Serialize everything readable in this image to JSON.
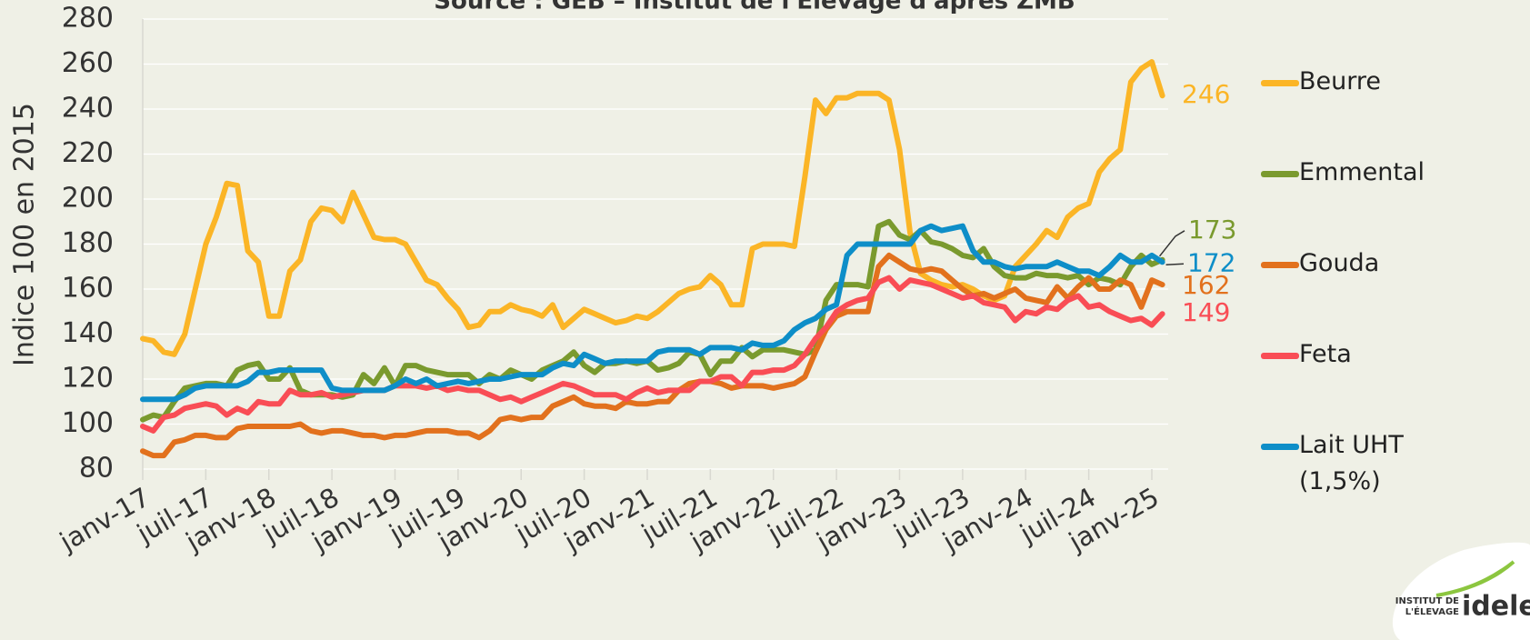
{
  "chart_data": {
    "type": "line",
    "subtitle": "Source : GEB – Institut de l'Elevage d'après ZMB",
    "y_label": "Indice 100 en 2015",
    "categories": [
      "janv-17",
      null,
      null,
      null,
      null,
      null,
      "juil-17",
      null,
      null,
      null,
      null,
      null,
      "janv-18",
      null,
      null,
      null,
      null,
      null,
      "juil-18",
      null,
      null,
      null,
      null,
      null,
      "janv-19",
      null,
      null,
      null,
      null,
      null,
      "juil-19",
      null,
      null,
      null,
      null,
      null,
      "janv-20",
      null,
      null,
      null,
      null,
      null,
      "juil-20",
      null,
      null,
      null,
      null,
      null,
      "janv-21",
      null,
      null,
      null,
      null,
      null,
      "juil-21",
      null,
      null,
      null,
      null,
      null,
      "janv-22",
      null,
      null,
      null,
      null,
      null,
      "juil-22",
      null,
      null,
      null,
      null,
      null,
      "janv-23",
      null,
      null,
      null,
      null,
      null,
      "juil-23",
      null,
      null,
      null,
      null,
      null,
      "janv-24",
      null,
      null,
      null,
      null,
      null,
      "juil-24",
      null,
      null,
      null,
      null,
      null,
      "janv-25",
      null
    ],
    "ylim": [
      80,
      280
    ],
    "yticks": [
      80,
      100,
      120,
      140,
      160,
      180,
      200,
      220,
      240,
      260,
      280
    ],
    "grid": true,
    "legend": "right",
    "series": [
      {
        "name": "Beurre",
        "color": "#fbb526",
        "values": [
          138,
          137,
          132,
          131,
          140,
          160,
          180,
          192,
          207,
          206,
          177,
          172,
          148,
          148,
          168,
          173,
          190,
          196,
          195,
          190,
          203,
          193,
          183,
          182,
          182,
          180,
          172,
          164,
          162,
          156,
          151,
          143,
          144,
          150,
          150,
          153,
          151,
          150,
          148,
          153,
          143,
          147,
          151,
          149,
          147,
          145,
          146,
          148,
          147,
          150,
          154,
          158,
          160,
          161,
          166,
          162,
          153,
          153,
          178,
          180,
          180,
          180,
          179,
          210,
          244,
          238,
          245,
          245,
          247,
          247,
          247,
          244,
          222,
          185,
          167,
          164,
          162,
          161,
          162,
          160,
          157,
          155,
          157,
          170,
          175,
          180,
          186,
          183,
          192,
          196,
          198,
          212,
          218,
          222,
          252,
          258,
          261,
          246
        ]
      },
      {
        "name": "Emmental",
        "color": "#7a9a2e",
        "values": [
          102,
          104,
          103,
          110,
          116,
          117,
          118,
          118,
          117,
          124,
          126,
          127,
          120,
          120,
          125,
          115,
          113,
          113,
          113,
          112,
          113,
          122,
          118,
          125,
          117,
          126,
          126,
          124,
          123,
          122,
          122,
          122,
          118,
          122,
          120,
          124,
          122,
          120,
          124,
          126,
          128,
          132,
          126,
          123,
          127,
          127,
          128,
          127,
          128,
          124,
          125,
          127,
          132,
          131,
          122,
          128,
          128,
          134,
          130,
          133,
          133,
          133,
          132,
          131,
          133,
          155,
          162,
          162,
          162,
          161,
          188,
          190,
          184,
          182,
          186,
          181,
          180,
          178,
          175,
          174,
          178,
          170,
          166,
          165,
          165,
          167,
          166,
          166,
          165,
          166,
          162,
          165,
          164,
          162,
          170,
          175,
          171,
          173
        ]
      },
      {
        "name": "Gouda",
        "color": "#e2711d",
        "values": [
          88,
          86,
          86,
          92,
          93,
          95,
          95,
          94,
          94,
          98,
          99,
          99,
          99,
          99,
          99,
          100,
          97,
          96,
          97,
          97,
          96,
          95,
          95,
          94,
          95,
          95,
          96,
          97,
          97,
          97,
          96,
          96,
          94,
          97,
          102,
          103,
          102,
          103,
          103,
          108,
          110,
          112,
          109,
          108,
          108,
          107,
          110,
          109,
          109,
          110,
          110,
          115,
          118,
          119,
          119,
          118,
          116,
          117,
          117,
          117,
          116,
          117,
          118,
          121,
          132,
          142,
          148,
          150,
          150,
          150,
          170,
          175,
          172,
          169,
          168,
          169,
          168,
          164,
          160,
          157,
          158,
          156,
          158,
          160,
          156,
          155,
          154,
          161,
          156,
          161,
          165,
          160,
          160,
          164,
          162,
          152,
          164,
          162
        ]
      },
      {
        "name": "Feta",
        "color": "#f94d55",
        "values": [
          99,
          97,
          103,
          104,
          107,
          108,
          109,
          108,
          104,
          107,
          105,
          110,
          109,
          109,
          115,
          113,
          113,
          114,
          112,
          113,
          114,
          115,
          115,
          115,
          117,
          117,
          117,
          116,
          117,
          115,
          116,
          115,
          115,
          113,
          111,
          112,
          110,
          112,
          114,
          116,
          118,
          117,
          115,
          113,
          113,
          113,
          111,
          114,
          116,
          114,
          115,
          115,
          115,
          119,
          119,
          121,
          121,
          117,
          123,
          123,
          124,
          124,
          126,
          131,
          138,
          143,
          150,
          153,
          155,
          156,
          163,
          165,
          160,
          164,
          163,
          162,
          160,
          158,
          156,
          157,
          154,
          153,
          152,
          146,
          150,
          149,
          152,
          151,
          155,
          157,
          152,
          153,
          150,
          148,
          146,
          147,
          144,
          149
        ]
      },
      {
        "name": "Lait UHT (1,5%)",
        "color": "#0e8ec8",
        "values": [
          111,
          111,
          111,
          111,
          113,
          116,
          117,
          117,
          117,
          117,
          119,
          123,
          123,
          124,
          124,
          124,
          124,
          124,
          116,
          115,
          115,
          115,
          115,
          115,
          117,
          120,
          118,
          120,
          117,
          118,
          119,
          118,
          119,
          120,
          120,
          121,
          122,
          122,
          122,
          125,
          127,
          126,
          131,
          129,
          127,
          128,
          128,
          128,
          128,
          132,
          133,
          133,
          133,
          131,
          134,
          134,
          134,
          133,
          136,
          135,
          135,
          137,
          142,
          145,
          147,
          151,
          153,
          175,
          180,
          180,
          180,
          180,
          180,
          180,
          186,
          188,
          186,
          187,
          188,
          177,
          172,
          172,
          170,
          169,
          170,
          170,
          170,
          172,
          170,
          168,
          168,
          166,
          170,
          175,
          172,
          172,
          175,
          172
        ]
      }
    ]
  },
  "logo": {
    "line1": "INSTITUT DE",
    "line2": "L'ÉLEVAGE",
    "brand": "idele"
  }
}
